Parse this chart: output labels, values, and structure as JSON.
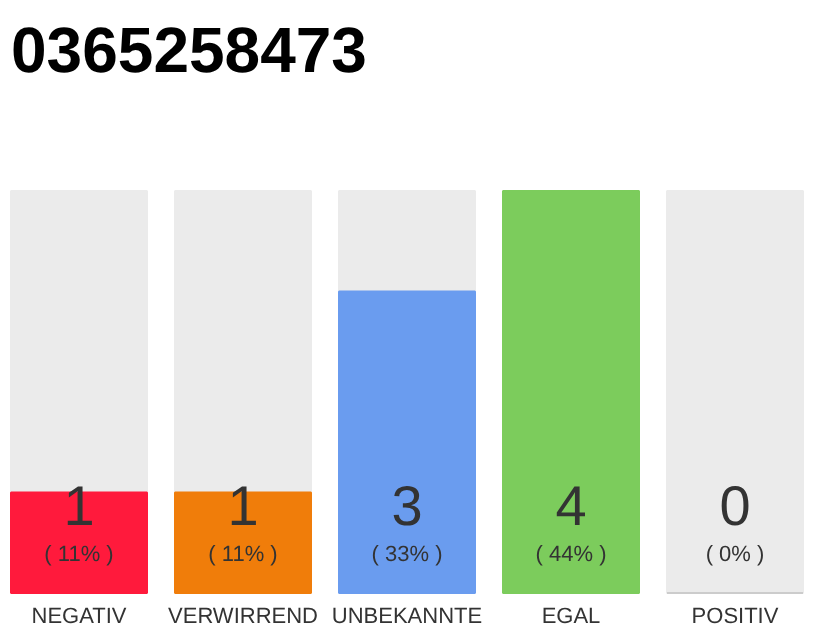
{
  "chart_data": {
    "type": "bar",
    "title": "0365258473",
    "categories": [
      "NEGATIV",
      "VERWIRREND",
      "UNBEKANNTE",
      "EGAL",
      "POSITIV"
    ],
    "values": [
      11,
      11,
      33,
      44,
      0
    ],
    "colors": [
      "#ff1a3c",
      "#f07d0a",
      "#6a9cef",
      "#7ccc5c",
      "#cccccc"
    ],
    "value_labels": [
      "( 11% )",
      "( 11% )",
      "( 33% )",
      "( 44% )",
      "( 0% )"
    ],
    "annotations": [
      "1",
      "1",
      "3",
      "4",
      "0"
    ]
  }
}
